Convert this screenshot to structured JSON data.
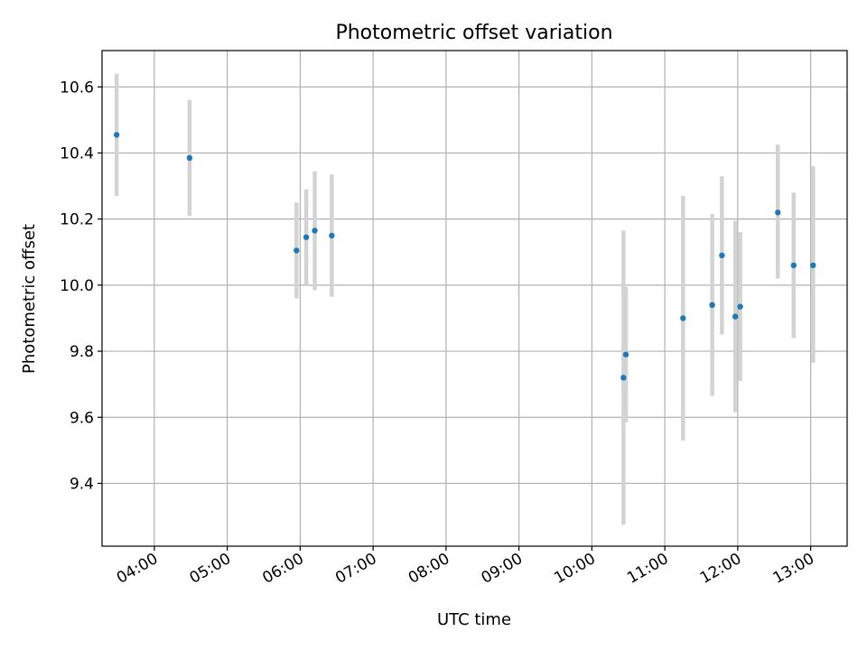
{
  "chart_data": {
    "type": "scatter",
    "title": "Photometric offset variation",
    "xlabel": "UTC time",
    "ylabel": "Photometric offset",
    "grid": true,
    "xlim": [
      "03:17",
      "13:30"
    ],
    "ylim": [
      9.21,
      10.71
    ],
    "x_ticks": [
      "04:00",
      "05:00",
      "06:00",
      "07:00",
      "08:00",
      "09:00",
      "10:00",
      "11:00",
      "12:00",
      "13:00"
    ],
    "y_ticks": [
      "9.4",
      "9.6",
      "9.8",
      "10.0",
      "10.2",
      "10.4",
      "10.6"
    ],
    "marker_color": "#1f77b4",
    "errorbar_color": "#d3d3d3",
    "series": [
      {
        "points": [
          {
            "x": "03:29",
            "y": 10.455,
            "err_low": 10.27,
            "err_high": 10.64
          },
          {
            "x": "04:29",
            "y": 10.385,
            "err_low": 10.21,
            "err_high": 10.56
          },
          {
            "x": "05:57",
            "y": 10.105,
            "err_low": 9.96,
            "err_high": 10.25
          },
          {
            "x": "06:05",
            "y": 10.145,
            "err_low": 10.0,
            "err_high": 10.29
          },
          {
            "x": "06:12",
            "y": 10.165,
            "err_low": 9.985,
            "err_high": 10.345
          },
          {
            "x": "06:26",
            "y": 10.15,
            "err_low": 9.965,
            "err_high": 10.335
          },
          {
            "x": "10:26",
            "y": 9.72,
            "err_low": 9.275,
            "err_high": 10.165
          },
          {
            "x": "10:28",
            "y": 9.79,
            "err_low": 9.585,
            "err_high": 9.995
          },
          {
            "x": "11:15",
            "y": 9.9,
            "err_low": 9.53,
            "err_high": 10.27
          },
          {
            "x": "11:39",
            "y": 9.94,
            "err_low": 9.665,
            "err_high": 10.215
          },
          {
            "x": "11:47",
            "y": 10.09,
            "err_low": 9.85,
            "err_high": 10.33
          },
          {
            "x": "11:58",
            "y": 9.905,
            "err_low": 9.615,
            "err_high": 10.195
          },
          {
            "x": "12:02",
            "y": 9.935,
            "err_low": 9.71,
            "err_high": 10.16
          },
          {
            "x": "12:33",
            "y": 10.22,
            "err_low": 10.02,
            "err_high": 10.425
          },
          {
            "x": "12:46",
            "y": 10.06,
            "err_low": 9.84,
            "err_high": 10.28
          },
          {
            "x": "13:02",
            "y": 10.06,
            "err_low": 9.765,
            "err_high": 10.36
          }
        ]
      }
    ]
  }
}
